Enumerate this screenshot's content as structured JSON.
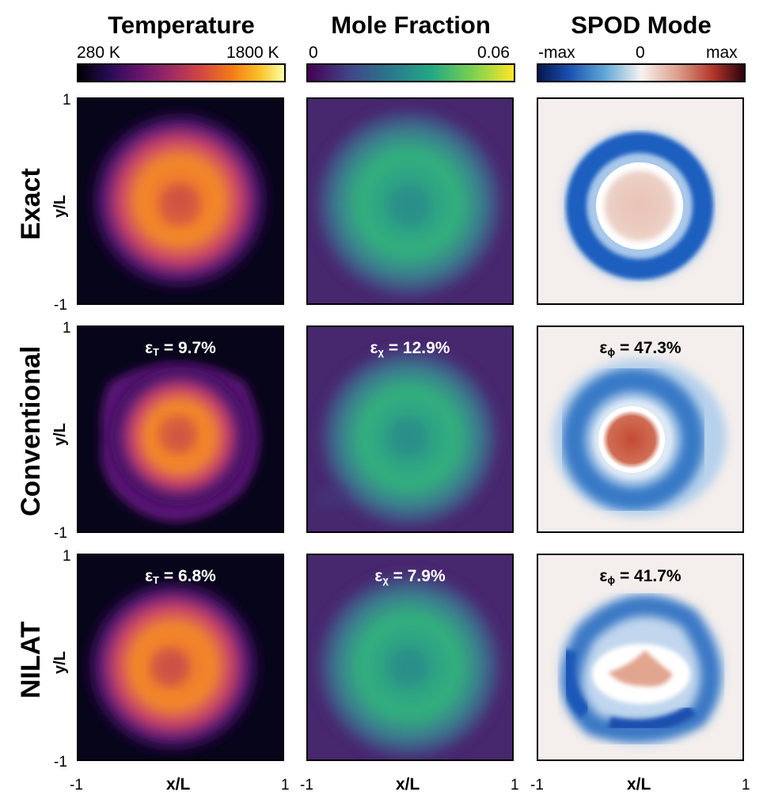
{
  "columns": {
    "temperature": {
      "title": "Temperature",
      "min_label": "280 K",
      "max_label": "1800 K"
    },
    "mole_fraction": {
      "title": "Mole Fraction",
      "min_label": "0",
      "max_label": "0.06"
    },
    "spod": {
      "title": "SPOD Mode",
      "min_label": "-max",
      "mid_label": "0",
      "max_label": "max"
    }
  },
  "rows": {
    "exact": {
      "label": "Exact"
    },
    "conventional": {
      "label": "Conventional",
      "errors": {
        "temperature": {
          "symbol": "ε",
          "sub": "T",
          "value": "= 9.7%"
        },
        "mole_fraction": {
          "symbol": "ε",
          "sub": "χ",
          "value": "= 12.9%"
        },
        "spod": {
          "symbol": "ε",
          "sub": "ϕ",
          "value": "= 47.3%"
        }
      }
    },
    "nilat": {
      "label": "NILAT",
      "errors": {
        "temperature": {
          "symbol": "ε",
          "sub": "T",
          "value": "= 6.8%"
        },
        "mole_fraction": {
          "symbol": "ε",
          "sub": "χ",
          "value": "= 7.9%"
        },
        "spod": {
          "symbol": "ε",
          "sub": "ϕ",
          "value": "= 41.7%"
        }
      }
    }
  },
  "axes": {
    "y_label": "y/L",
    "x_label": "x/L",
    "y_top": "1",
    "y_bottom": "-1",
    "x_left": "-1",
    "x_right": "1"
  },
  "colors": {
    "inferno_bg": "#07051a",
    "inferno_ring": "#f08a2c",
    "viridis_bg": "#47276e",
    "viridis_ring": "#2fae83",
    "spod_bg": "#f4eeec",
    "spod_blue": "#1f5fbf",
    "spod_red": "#c75a3f"
  }
}
